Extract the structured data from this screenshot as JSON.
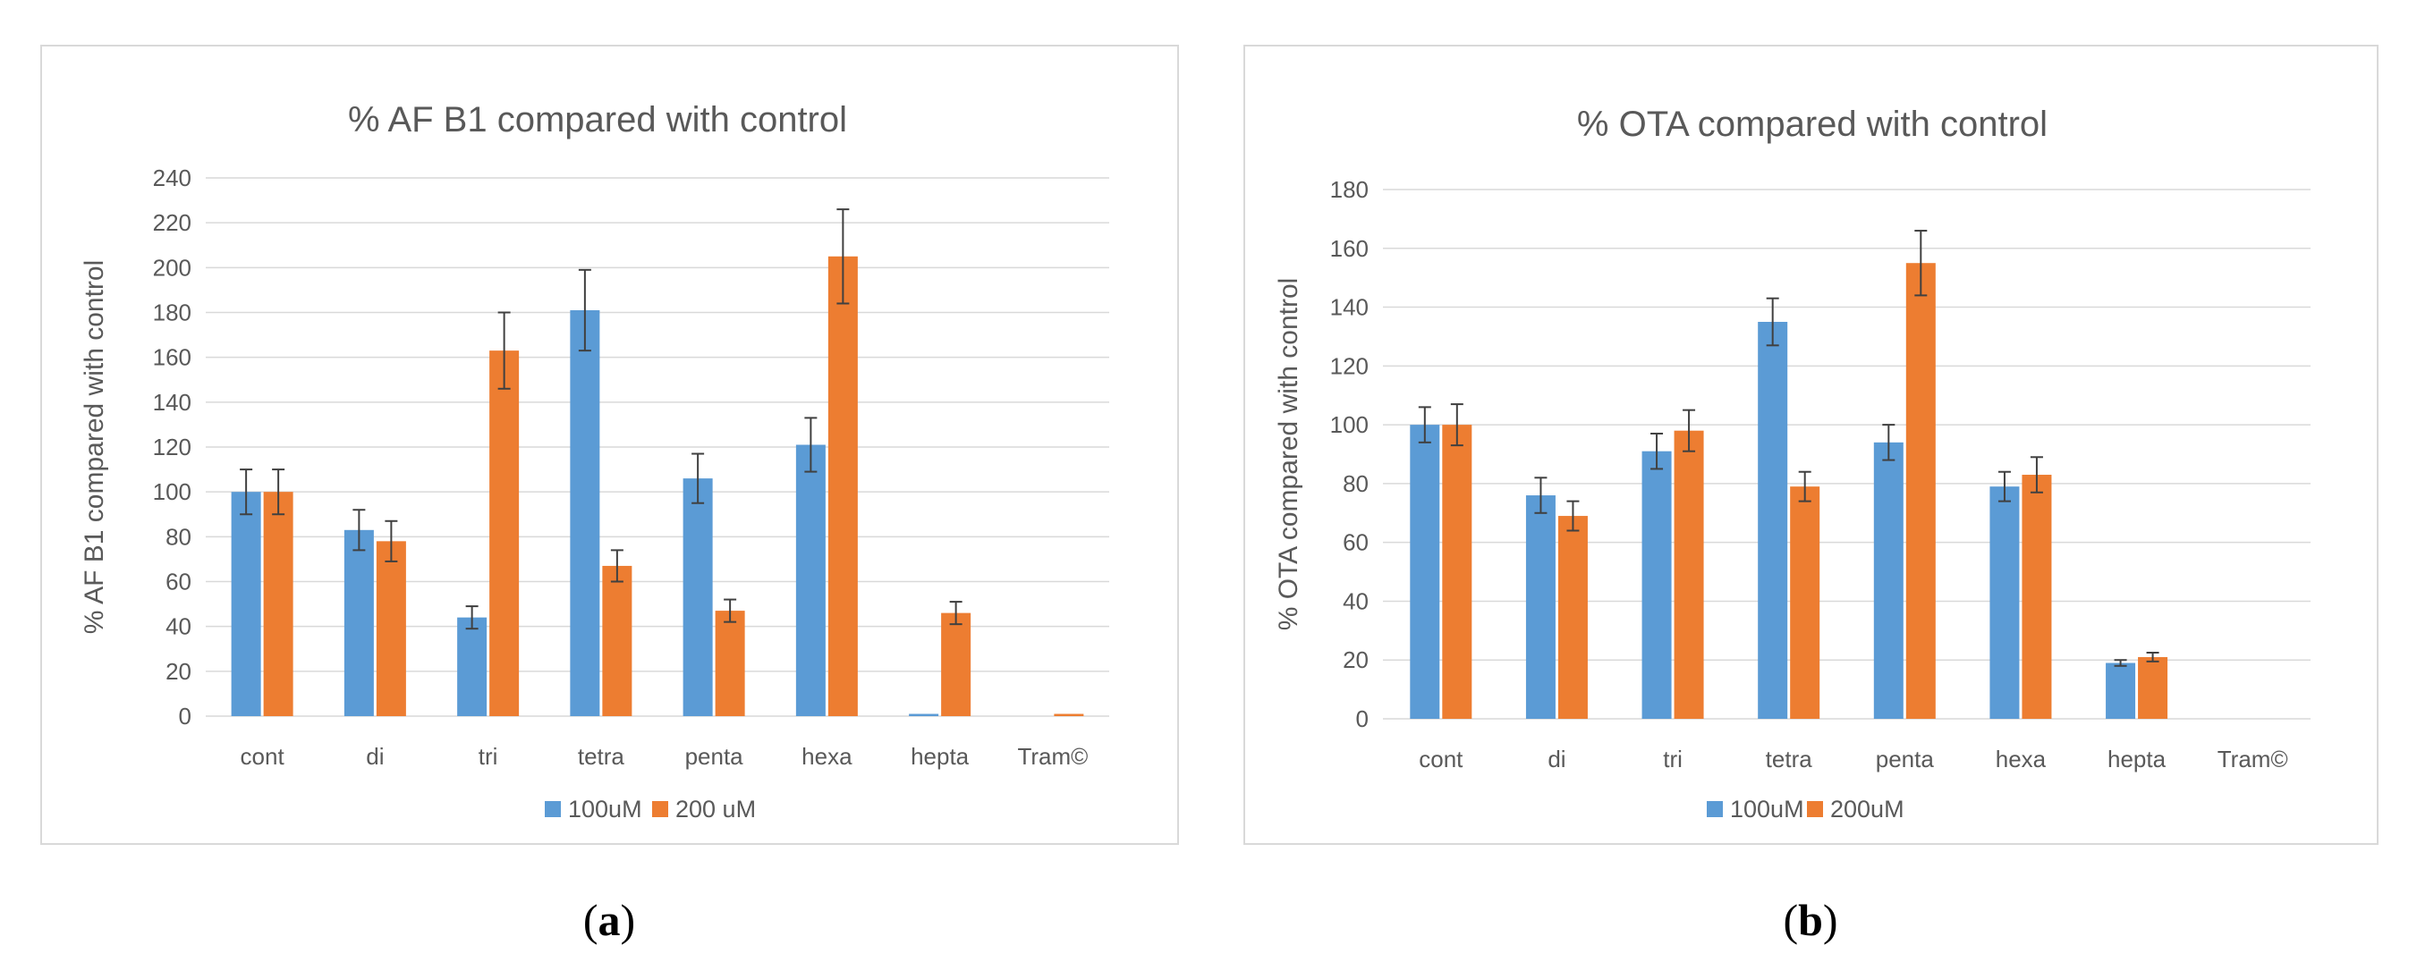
{
  "chart_data": [
    {
      "type": "bar",
      "panel_label": "a",
      "title": "% AF B1 compared with control",
      "xlabel": "",
      "ylabel": "% AF B1 compared with control",
      "ylim": [
        0,
        240
      ],
      "yticks": [
        0,
        20,
        40,
        60,
        80,
        100,
        120,
        140,
        160,
        180,
        200,
        220,
        240
      ],
      "grid": true,
      "legend": "bottom",
      "categories": [
        "cont",
        "di",
        "tri",
        "tetra",
        "penta",
        "hexa",
        "hepta",
        "Tram©"
      ],
      "series": [
        {
          "name": "100uM",
          "color": "#5b9bd5",
          "values": [
            100,
            83,
            44,
            181,
            106,
            121,
            1,
            0
          ],
          "errors": [
            10,
            9,
            5,
            18,
            11,
            12,
            0,
            0
          ]
        },
        {
          "name": "200 uM",
          "color": "#ed7d31",
          "values": [
            100,
            78,
            163,
            67,
            47,
            205,
            46,
            1
          ],
          "errors": [
            10,
            9,
            17,
            7,
            5,
            21,
            5,
            0
          ]
        }
      ]
    },
    {
      "type": "bar",
      "panel_label": "b",
      "title": "% OTA compared with control",
      "xlabel": "",
      "ylabel": "% OTA compared with control",
      "ylim": [
        0,
        180
      ],
      "yticks": [
        0,
        20,
        40,
        60,
        80,
        100,
        120,
        140,
        160,
        180
      ],
      "grid": true,
      "legend": "bottom",
      "categories": [
        "cont",
        "di",
        "tri",
        "tetra",
        "penta",
        "hexa",
        "hepta",
        "Tram©"
      ],
      "series": [
        {
          "name": "100uM",
          "color": "#5b9bd5",
          "values": [
            100,
            76,
            91,
            135,
            94,
            79,
            19,
            0
          ],
          "errors": [
            6,
            6,
            6,
            8,
            6,
            5,
            1,
            0
          ]
        },
        {
          "name": "200uM",
          "color": "#ed7d31",
          "values": [
            100,
            69,
            98,
            79,
            155,
            83,
            21,
            0
          ],
          "errors": [
            7,
            5,
            7,
            5,
            11,
            6,
            1.5,
            0
          ]
        }
      ]
    }
  ]
}
